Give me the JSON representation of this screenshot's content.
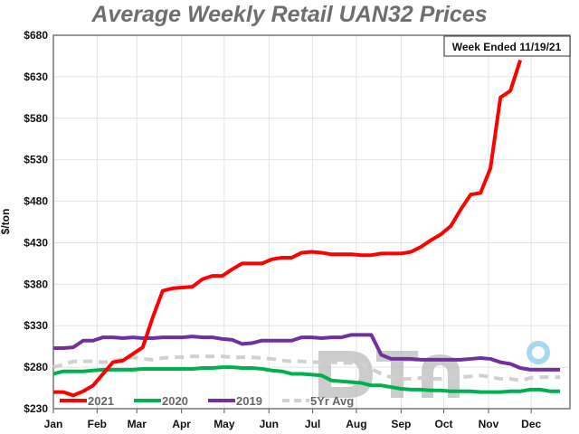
{
  "chart_data": {
    "type": "line",
    "title": "Average Weekly Retail UAN32 Prices",
    "annotation": "Week Ended 11/19/21",
    "xlabel": "",
    "ylabel": "$/ton",
    "ylim": [
      230,
      680
    ],
    "yticks": [
      "$230",
      "$280",
      "$330",
      "$380",
      "$430",
      "$480",
      "$530",
      "$580",
      "$630",
      "$680"
    ],
    "ytick_values": [
      230,
      280,
      330,
      380,
      430,
      480,
      530,
      580,
      630,
      680
    ],
    "x_unit": "week of year",
    "months": [
      "Jan",
      "Feb",
      "Mar",
      "Apr",
      "May",
      "Jun",
      "Jul",
      "Aug",
      "Sep",
      "Oct",
      "Nov",
      "Dec"
    ],
    "month_start_weeks": [
      0,
      4.4,
      8.4,
      12.9,
      17.2,
      21.7,
      26.1,
      30.5,
      35,
      39.3,
      43.8,
      48.1
    ],
    "grid": true,
    "legend_position": "bottom",
    "series": [
      {
        "name": "2021",
        "color": "#ff0000",
        "dashed": false,
        "values": [
          250,
          250,
          246,
          251,
          258,
          272,
          286,
          288,
          296,
          304,
          340,
          372,
          375,
          376,
          377,
          386,
          390,
          390,
          398,
          405,
          405,
          405,
          410,
          412,
          412,
          418,
          419,
          418,
          416,
          416,
          416,
          415,
          415,
          417,
          417,
          417,
          419,
          425,
          433,
          440,
          450,
          470,
          488,
          490,
          520,
          605,
          613,
          650
        ]
      },
      {
        "name": "2020",
        "color": "#00b050",
        "dashed": false,
        "values": [
          272,
          275,
          275,
          275,
          276,
          277,
          277,
          277,
          277,
          278,
          278,
          278,
          278,
          278,
          278,
          279,
          279,
          280,
          280,
          279,
          279,
          278,
          276,
          275,
          272,
          272,
          271,
          270,
          264,
          263,
          262,
          261,
          258,
          258,
          256,
          254,
          253,
          253,
          252,
          252,
          251,
          251,
          251,
          250,
          250,
          250,
          251,
          251,
          253,
          253,
          251,
          251
        ]
      },
      {
        "name": "2019",
        "color": "#7030a0",
        "dashed": false,
        "values": [
          303,
          303,
          304,
          312,
          312,
          316,
          316,
          315,
          316,
          315,
          315,
          316,
          316,
          316,
          317,
          316,
          316,
          314,
          313,
          308,
          309,
          312,
          312,
          312,
          312,
          316,
          316,
          315,
          316,
          316,
          319,
          319,
          319,
          295,
          290,
          290,
          290,
          289,
          289,
          289,
          289,
          289,
          290,
          291,
          290,
          286,
          284,
          279,
          277,
          277,
          277,
          277
        ]
      },
      {
        "name": "5Yr Avg",
        "color": "#d0d0d0",
        "dashed": true,
        "values": [
          280,
          283,
          287,
          287,
          287,
          286,
          287,
          290,
          292,
          290,
          289,
          291,
          292,
          292,
          293,
          293,
          293,
          293,
          292,
          292,
          292,
          291,
          290,
          288,
          287,
          287,
          286,
          286,
          286,
          285,
          285,
          283,
          278,
          272,
          268,
          266,
          266,
          267,
          266,
          266,
          267,
          268,
          269,
          270,
          268,
          266,
          266,
          264,
          267,
          268,
          268,
          268
        ]
      }
    ]
  },
  "watermark": "DTN"
}
